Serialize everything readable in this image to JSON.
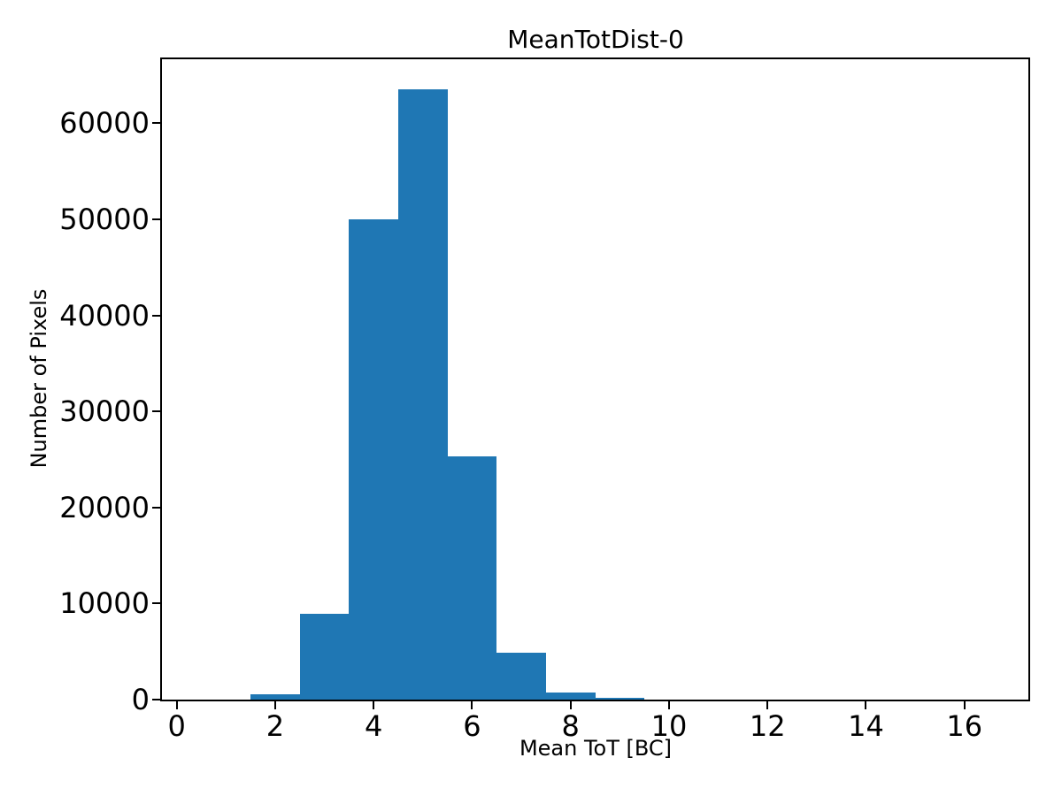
{
  "chart_data": {
    "type": "bar",
    "subtype": "histogram",
    "title": "MeanTotDist-0",
    "xlabel": "Mean ToT [BC]",
    "ylabel": "Number of Pixels",
    "bar_color": "#1f77b4",
    "axis_color": "#000000",
    "background_color": "#ffffff",
    "bins": {
      "start": 0.5,
      "width": 1,
      "count": 16
    },
    "bin_edges": [
      0.5,
      1.5,
      2.5,
      3.5,
      4.5,
      5.5,
      6.5,
      7.5,
      8.5,
      9.5,
      10.5,
      11.5,
      12.5,
      13.5,
      14.5,
      15.5,
      16.5
    ],
    "counts": [
      0,
      600,
      8900,
      50000,
      63500,
      25300,
      4900,
      750,
      200,
      0,
      0,
      0,
      0,
      0,
      0,
      0
    ],
    "x_ticks": [
      0,
      2,
      4,
      6,
      8,
      10,
      12,
      14,
      16
    ],
    "x_tick_labels": [
      "0",
      "2",
      "4",
      "6",
      "8",
      "10",
      "12",
      "14",
      "16"
    ],
    "y_ticks": [
      0,
      10000,
      20000,
      30000,
      40000,
      50000,
      60000
    ],
    "y_tick_labels": [
      "0",
      "10000",
      "20000",
      "30000",
      "40000",
      "50000",
      "60000"
    ],
    "xlim": [
      -0.3,
      17.3
    ],
    "ylim": [
      0,
      66675
    ],
    "grid": false,
    "legend": null
  }
}
